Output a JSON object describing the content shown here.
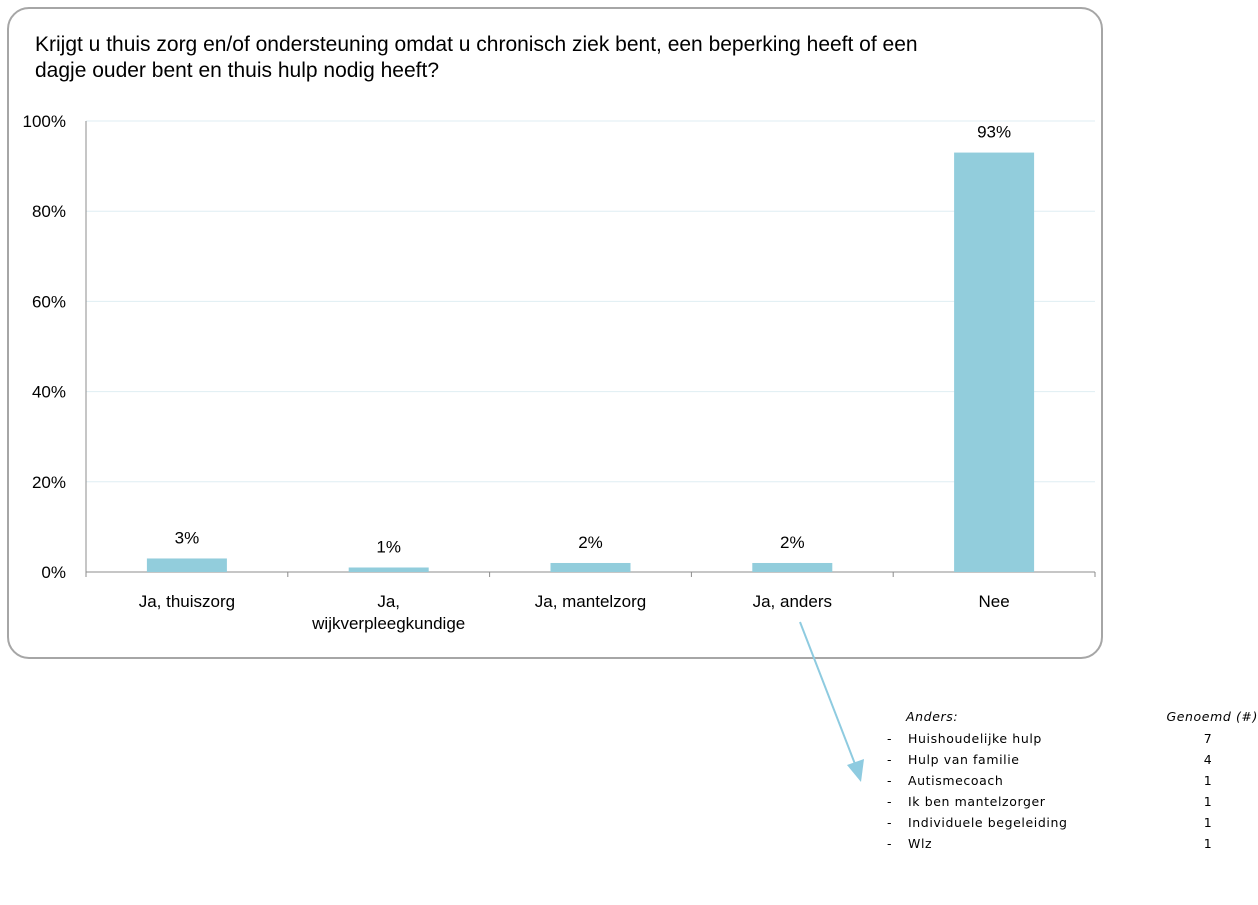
{
  "chart_data": {
    "type": "bar",
    "title": "Krijgt u thuis zorg en/of ondersteuning omdat u chronisch ziek bent, een beperking heeft of een dagje ouder bent en thuis hulp nodig heeft?",
    "categories": [
      [
        "Ja, thuiszorg"
      ],
      [
        "Ja,",
        "wijkverpleegkundige"
      ],
      [
        "Ja, mantelzorg"
      ],
      [
        "Ja, anders"
      ],
      [
        "Nee"
      ]
    ],
    "values": [
      3,
      1,
      2,
      2,
      93
    ],
    "data_labels": [
      "3%",
      "1%",
      "2%",
      "2%",
      "93%"
    ],
    "yticks": [
      "0%",
      "20%",
      "40%",
      "60%",
      "80%",
      "100%"
    ],
    "ylim": [
      0,
      100
    ],
    "grid": true,
    "bar_color": "#92cddc"
  },
  "anders": {
    "header_label": "Anders:",
    "header_count": "Genoemd (#)",
    "items": [
      {
        "dash": "-",
        "label": "Huishoudelijke hulp",
        "count": "7"
      },
      {
        "dash": "-",
        "label": "Hulp van familie",
        "count": "4"
      },
      {
        "dash": "-",
        "label": "Autismecoach",
        "count": "1"
      },
      {
        "dash": "-",
        "label": "Ik ben mantelzorger",
        "count": "1"
      },
      {
        "dash": "-",
        "label": "Individuele begeleiding",
        "count": "1"
      },
      {
        "dash": "-",
        "label": "Wlz",
        "count": "1"
      }
    ]
  },
  "colors": {
    "bar": "#92cddc",
    "gridline": "#dfeef3",
    "axis": "#8c8c8c",
    "arrow": "#8ecbe0",
    "frame": "#a6a6a6"
  }
}
